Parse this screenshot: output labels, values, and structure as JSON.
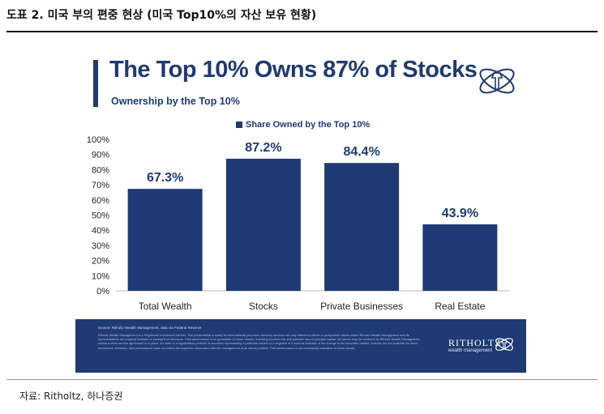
{
  "document": {
    "title": "도표 2. 미국 부의 편중 현상 (미국 Top10%의 자산 보유 현황)",
    "source": "자료: Ritholtz, 하나증권"
  },
  "colors": {
    "accent": "#1f3a74",
    "footer": "#1f3a74"
  },
  "chart_data": {
    "type": "bar",
    "title": "The Top 10% Owns 87% of Stocks",
    "subtitle": "Ownership by the Top 10%",
    "legend": {
      "label": "Share Owned by the Top 10%",
      "placement": "top-center"
    },
    "categories": [
      "Total Wealth",
      "Stocks",
      "Private Businesses",
      "Real Estate"
    ],
    "series": [
      {
        "name": "Share Owned by the Top 10%",
        "values": [
          67.3,
          87.2,
          84.4,
          43.9
        ],
        "color": "#1f3a74"
      }
    ],
    "data_labels": [
      "67.3%",
      "87.2%",
      "84.4%",
      "43.9%"
    ],
    "yticks": [
      "0%",
      "10%",
      "20%",
      "30%",
      "40%",
      "50%",
      "60%",
      "70%",
      "80%",
      "90%",
      "100%"
    ],
    "ylim": [
      0,
      100
    ],
    "xlabel": "",
    "ylabel": "",
    "grid": false
  },
  "footer": {
    "source": "Source: Ritholtz Wealth Management, data via Federal Reserve",
    "disclaimer": "Ritholtz Wealth Management is a Registered Investment Adviser. This presentation is solely for informational purposes. Advisory services are only offered to clients or prospective clients where Ritholtz Wealth Management and its representatives are properly licensed or exempt from licensure. Past performance is no guarantee of future returns. Investing involves risk and possible loss of principal capital. No advice may be rendered by Ritholtz Wealth Management unless a client service agreement is in place. An index is a hypothetical portfolio of securities representing a particular market or a segment of it used as indicator of the change in the securities market. Indexes are not available for direct investment; therefore, their performance does not reflect the expenses associated with the management of an actual portfolio. Past performance is not necessarily indicative of future results.",
    "brand": "RITHOLTZ",
    "brand_sub": "wealth management"
  },
  "logos": {
    "top": "ritholtz-logo-icon",
    "footer": "ritholtz-logo-icon"
  }
}
